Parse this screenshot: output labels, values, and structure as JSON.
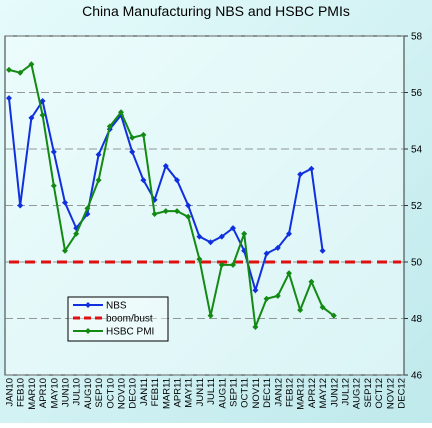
{
  "chart_data": {
    "type": "line",
    "title": "China Manufacturing NBS and HSBC  PMIs",
    "categories": [
      "JAN10",
      "FEB10",
      "MAR10",
      "APR10",
      "MAY10",
      "JUN10",
      "JUL10",
      "AUG10",
      "SEP10",
      "OCT10",
      "NOV10",
      "DEC10",
      "JAN11",
      "FEB11",
      "MAR11",
      "APR11",
      "MAY11",
      "JUN11",
      "JUL11",
      "AUG11",
      "SEP11",
      "OCT11",
      "NOV11",
      "DEC11",
      "JAN12",
      "FEB12",
      "MAR12",
      "APR12",
      "MAY12",
      "JUN12",
      "JUL12",
      "AUG12",
      "SEP12",
      "OCT12",
      "NOV12",
      "DEC12"
    ],
    "series": [
      {
        "name": "NBS",
        "color": "#1030e0",
        "marker": true,
        "dashed": false,
        "values": [
          55.8,
          52.0,
          55.1,
          55.7,
          53.9,
          52.1,
          51.2,
          51.7,
          53.8,
          54.7,
          55.2,
          53.9,
          52.9,
          52.2,
          53.4,
          52.9,
          52.0,
          50.9,
          50.7,
          50.9,
          51.2,
          50.4,
          49.0,
          50.3,
          50.5,
          51.0,
          53.1,
          53.3,
          50.4,
          null,
          null,
          null,
          null,
          null,
          null,
          null
        ]
      },
      {
        "name": "boom/bust",
        "color": "#e01010",
        "marker": false,
        "dashed": true,
        "values": [
          50,
          50,
          50,
          50,
          50,
          50,
          50,
          50,
          50,
          50,
          50,
          50,
          50,
          50,
          50,
          50,
          50,
          50,
          50,
          50,
          50,
          50,
          50,
          50,
          50,
          50,
          50,
          50,
          50,
          50,
          50,
          50,
          50,
          50,
          50,
          50
        ]
      },
      {
        "name": "HSBC PMI",
        "color": "#138a13",
        "marker": true,
        "dashed": false,
        "values": [
          56.8,
          56.7,
          57.0,
          55.2,
          52.7,
          50.4,
          51.0,
          51.9,
          52.9,
          54.8,
          55.3,
          54.4,
          54.5,
          51.7,
          51.8,
          51.8,
          51.6,
          50.1,
          48.1,
          49.9,
          49.9,
          51.0,
          47.7,
          48.7,
          48.8,
          49.6,
          48.3,
          49.3,
          48.4,
          48.1,
          null,
          null,
          null,
          null,
          null,
          null
        ]
      }
    ],
    "ylim": [
      46,
      58
    ],
    "yticks": [
      46,
      48,
      50,
      52,
      54,
      56,
      58
    ],
    "grid": true,
    "y_axis_side": "right",
    "legend": "lower left"
  }
}
